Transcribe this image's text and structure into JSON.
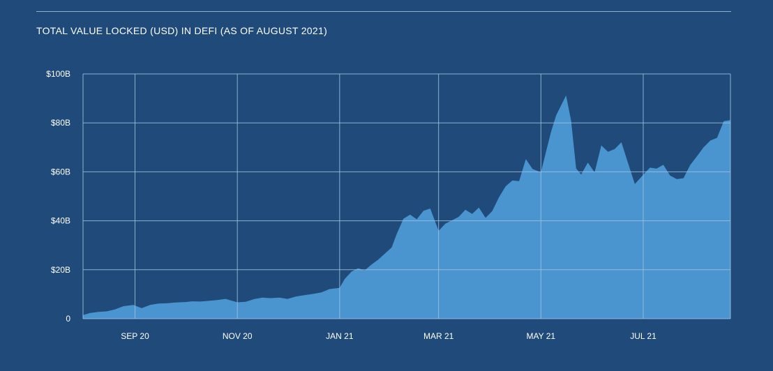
{
  "chart_data": {
    "type": "area",
    "title": "TOTAL VALUE LOCKED (USD) IN DEFI (AS OF AUGUST 2021)",
    "xlabel": "",
    "ylabel": "",
    "unit": "USD billions",
    "ylim": [
      0,
      100
    ],
    "yticks": [
      0,
      20,
      40,
      60,
      80,
      100
    ],
    "ytick_labels": [
      "0",
      "$20B",
      "$40B",
      "$60B",
      "$80B",
      "$100B"
    ],
    "xlim": [
      "2020-08-01",
      "2021-08-22"
    ],
    "xticks": [
      "2020-09-01",
      "2020-11-01",
      "2021-01-01",
      "2021-03-01",
      "2021-05-01",
      "2021-07-01"
    ],
    "xtick_labels": [
      "SEP 20",
      "NOV 20",
      "JAN 21",
      "MAR 21",
      "MAY 21",
      "JUL 21"
    ],
    "grid": true,
    "colors": {
      "background": "#1f4a7a",
      "area": "#4a94cf",
      "grid": "#9fc2e2",
      "text": "#ffffff"
    },
    "series": [
      {
        "x": [
          "2020-08-01",
          "2020-08-05",
          "2020-08-10",
          "2020-08-15",
          "2020-08-20",
          "2020-08-25",
          "2020-08-31",
          "2020-09-05",
          "2020-09-10",
          "2020-09-15",
          "2020-09-20",
          "2020-09-25",
          "2020-10-01",
          "2020-10-05",
          "2020-10-10",
          "2020-10-15",
          "2020-10-20",
          "2020-10-25",
          "2020-11-01",
          "2020-11-06",
          "2020-11-11",
          "2020-11-16",
          "2020-11-21",
          "2020-11-26",
          "2020-12-01",
          "2020-12-06",
          "2020-12-11",
          "2020-12-16",
          "2020-12-21",
          "2020-12-26",
          "2021-01-01",
          "2021-01-04",
          "2021-01-08",
          "2021-01-12",
          "2021-01-16",
          "2021-01-20",
          "2021-01-24",
          "2021-01-28",
          "2021-02-01",
          "2021-02-04",
          "2021-02-08",
          "2021-02-12",
          "2021-02-16",
          "2021-02-20",
          "2021-02-24",
          "2021-03-01",
          "2021-03-05",
          "2021-03-09",
          "2021-03-13",
          "2021-03-17",
          "2021-03-21",
          "2021-03-25",
          "2021-03-29",
          "2021-04-02",
          "2021-04-06",
          "2021-04-10",
          "2021-04-14",
          "2021-04-18",
          "2021-04-22",
          "2021-04-26",
          "2021-05-01",
          "2021-05-04",
          "2021-05-07",
          "2021-05-10",
          "2021-05-13",
          "2021-05-16",
          "2021-05-19",
          "2021-05-22",
          "2021-05-25",
          "2021-05-29",
          "2021-06-02",
          "2021-06-06",
          "2021-06-10",
          "2021-06-14",
          "2021-06-18",
          "2021-06-22",
          "2021-06-26",
          "2021-07-01",
          "2021-07-05",
          "2021-07-09",
          "2021-07-13",
          "2021-07-17",
          "2021-07-21",
          "2021-07-25",
          "2021-07-29",
          "2021-08-02",
          "2021-08-06",
          "2021-08-10",
          "2021-08-14",
          "2021-08-18",
          "2021-08-22"
        ],
        "values": [
          1.5,
          2.3,
          2.8,
          3.0,
          3.8,
          5.1,
          5.6,
          4.3,
          5.6,
          6.2,
          6.3,
          6.6,
          6.8,
          7.1,
          7.0,
          7.3,
          7.6,
          8.1,
          6.7,
          6.9,
          8.0,
          8.6,
          8.4,
          8.6,
          8.1,
          9.1,
          9.6,
          10.1,
          10.7,
          12.1,
          12.6,
          16.2,
          19.2,
          20.6,
          19.8,
          22.1,
          24.1,
          26.6,
          29.1,
          34.6,
          40.8,
          42.5,
          40.6,
          44.1,
          45.0,
          35.9,
          38.8,
          40.2,
          41.6,
          44.5,
          42.8,
          45.4,
          41.2,
          44.0,
          49.6,
          54.1,
          56.5,
          56.2,
          65.2,
          61.2,
          59.8,
          68.0,
          76.3,
          83.0,
          87.1,
          91.2,
          80.9,
          61.4,
          58.9,
          63.8,
          59.8,
          70.8,
          68.2,
          69.3,
          72.1,
          63.5,
          55.0,
          58.8,
          61.7,
          61.3,
          62.9,
          58.5,
          57.0,
          57.4,
          62.8,
          66.3,
          70.0,
          72.8,
          73.9,
          80.7,
          81.1
        ]
      }
    ]
  }
}
